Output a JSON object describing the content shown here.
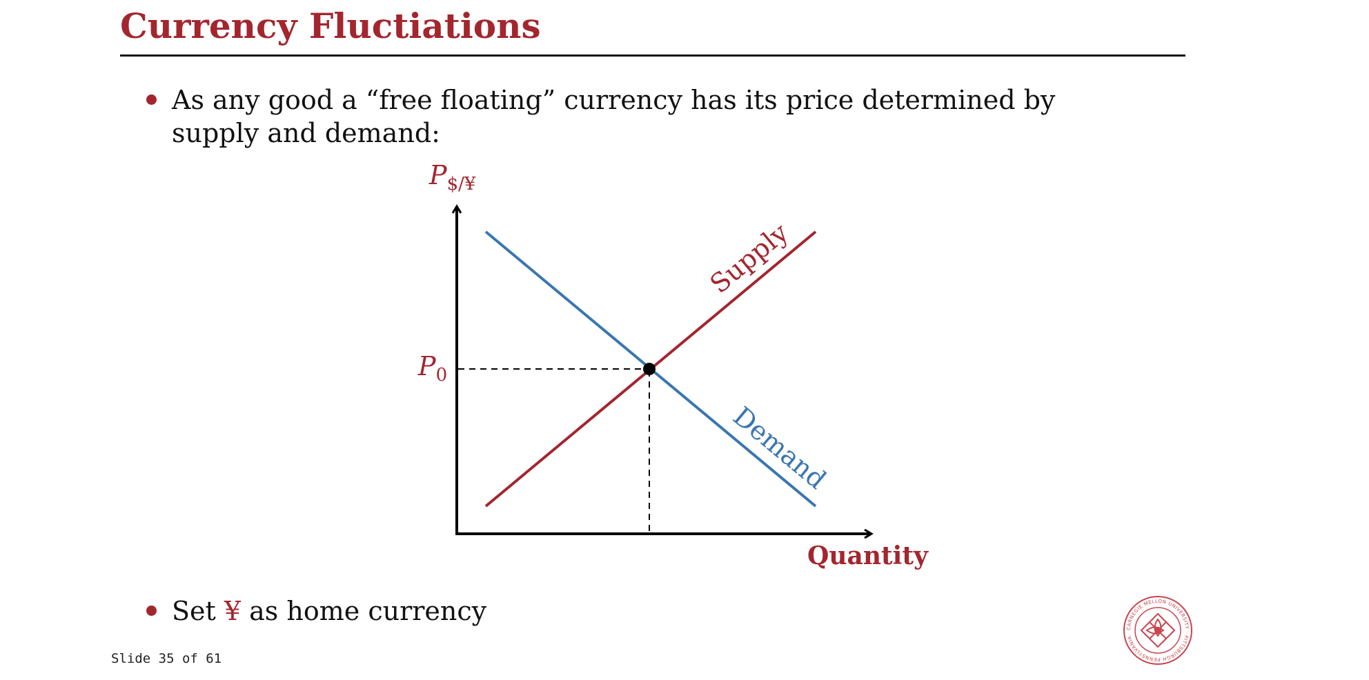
{
  "slide": {
    "title": "Currency Fluctiations",
    "bullets": [
      "As any good a “free floating” currency has its price determined by supply and demand:",
      {
        "before": "Set ",
        "highlight": "¥",
        "after": " as home currency"
      }
    ],
    "footer": "Slide 35 of 61"
  },
  "diagram": {
    "y_axis_label": "P",
    "y_axis_subscript": "$/¥",
    "x_axis_label": "Quantity",
    "equilibrium_label": "P",
    "equilibrium_subscript": "0",
    "supply_label": "Supply",
    "demand_label": "Demand",
    "colors": {
      "supply": "#a3262f",
      "demand": "#3a76b0",
      "axis": "#000000",
      "label": "#a3262f"
    }
  },
  "logo": {
    "icon": "university-seal-icon",
    "text": "CARNEGIE MELLON UNIVERSITY · PITTSBURGH PENNSYLVANIA"
  }
}
